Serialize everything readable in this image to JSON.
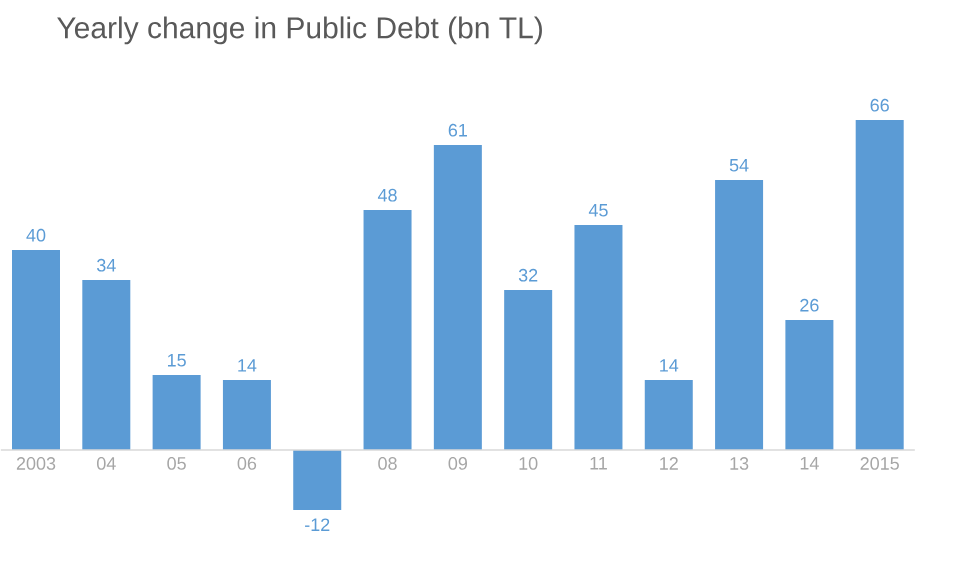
{
  "chart_data": {
    "type": "bar",
    "title": "Yearly change in Public Debt (bn TL)",
    "categories": [
      "2003",
      "04",
      "05",
      "06",
      null,
      "08",
      "09",
      "10",
      "11",
      "12",
      "13",
      "14",
      "2015"
    ],
    "values": [
      40,
      34,
      15,
      14,
      -12,
      48,
      61,
      32,
      45,
      14,
      54,
      26,
      66
    ],
    "color": "#5b9bd5",
    "data_labels": true
  }
}
